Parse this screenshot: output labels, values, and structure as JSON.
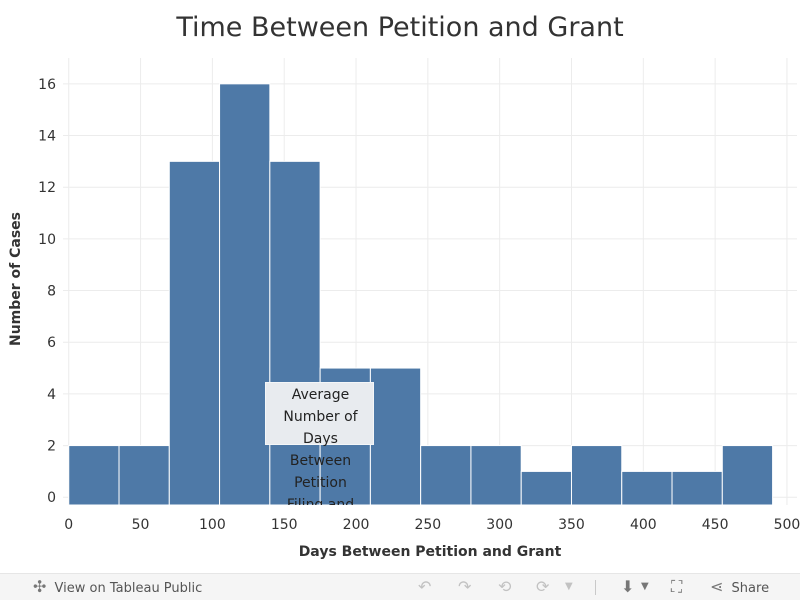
{
  "chart_data": {
    "type": "bar",
    "title": "Time Between Petition and Grant",
    "xlabel": "Days Between Petition and Grant",
    "ylabel": "Number of Cases",
    "bin_width": 35,
    "bins": [
      {
        "start": 0,
        "end": 35,
        "count": 2
      },
      {
        "start": 35,
        "end": 70,
        "count": 2
      },
      {
        "start": 70,
        "end": 105,
        "count": 13
      },
      {
        "start": 105,
        "end": 140,
        "count": 16
      },
      {
        "start": 140,
        "end": 175,
        "count": 13
      },
      {
        "start": 175,
        "end": 210,
        "count": 5
      },
      {
        "start": 210,
        "end": 245,
        "count": 5
      },
      {
        "start": 245,
        "end": 280,
        "count": 2
      },
      {
        "start": 280,
        "end": 315,
        "count": 2
      },
      {
        "start": 315,
        "end": 350,
        "count": 1
      },
      {
        "start": 350,
        "end": 385,
        "count": 2
      },
      {
        "start": 385,
        "end": 420,
        "count": 1
      },
      {
        "start": 420,
        "end": 455,
        "count": 1
      },
      {
        "start": 455,
        "end": 490,
        "count": 2
      }
    ],
    "xlim": [
      -4,
      507
    ],
    "ylim": [
      -0.3,
      17
    ],
    "x_ticks": [
      0,
      50,
      100,
      150,
      200,
      250,
      300,
      350,
      400,
      450,
      500
    ],
    "y_ticks": [
      0,
      2,
      4,
      6,
      8,
      10,
      12,
      14,
      16
    ],
    "grid": true,
    "bar_color": "#4e79a7",
    "annotation": {
      "lines": [
        "Average",
        "Number of",
        "Days",
        "Between",
        "Petition",
        "Filing and"
      ]
    }
  },
  "toolbar": {
    "view_label": "View on Tableau Public",
    "share_label": "Share",
    "icons": {
      "tableau": "tableau-logo",
      "undo": "undo-icon",
      "redo": "redo-icon",
      "revert": "revert-icon",
      "refresh": "refresh-icon",
      "download": "download-icon",
      "fullscreen": "fullscreen-icon",
      "share": "share-icon"
    }
  }
}
